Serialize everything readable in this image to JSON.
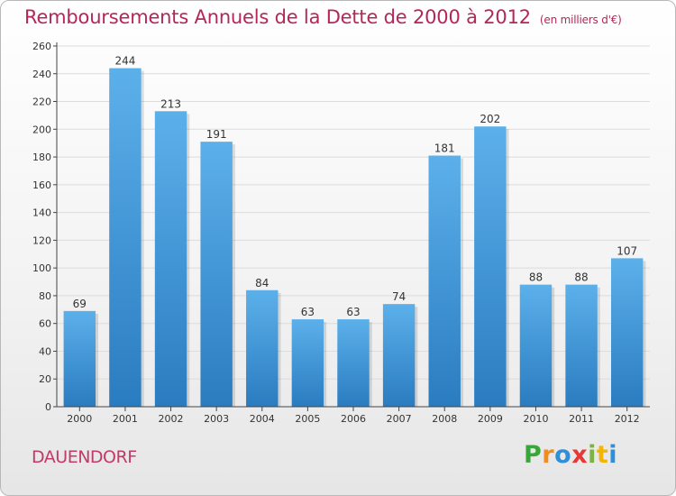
{
  "header": {
    "title": "Remboursements Annuels de la Dette de 2000 à 2012",
    "subtitle": "(en milliers d'€)"
  },
  "footer": {
    "commune": "DAUENDORF",
    "logo_letters": [
      "P",
      "r",
      "o",
      "x",
      "i",
      "t",
      "i"
    ],
    "logo_colors": [
      "#3aa63a",
      "#f28c1e",
      "#2f8fd8",
      "#e53935",
      "#7cb342",
      "#f5b400",
      "#2f8fd8"
    ]
  },
  "colors": {
    "bar_top": "#5cb0ea",
    "bar_bottom": "#2a7cc0",
    "grid": "#dcdcdc",
    "axis": "#444444",
    "title": "#b5265a"
  },
  "chart_data": {
    "type": "bar",
    "title": "Remboursements Annuels de la Dette de 2000 à 2012",
    "subtitle": "(en milliers d'€)",
    "categories": [
      "2000",
      "2001",
      "2002",
      "2003",
      "2004",
      "2005",
      "2006",
      "2007",
      "2008",
      "2009",
      "2010",
      "2011",
      "2012"
    ],
    "values": [
      69,
      244,
      213,
      191,
      84,
      63,
      63,
      74,
      181,
      202,
      88,
      88,
      107
    ],
    "ylim": [
      0,
      260
    ],
    "yticks": [
      0,
      20,
      40,
      60,
      80,
      100,
      120,
      140,
      160,
      180,
      200,
      220,
      240,
      260
    ],
    "grid": true,
    "legend": "none"
  }
}
